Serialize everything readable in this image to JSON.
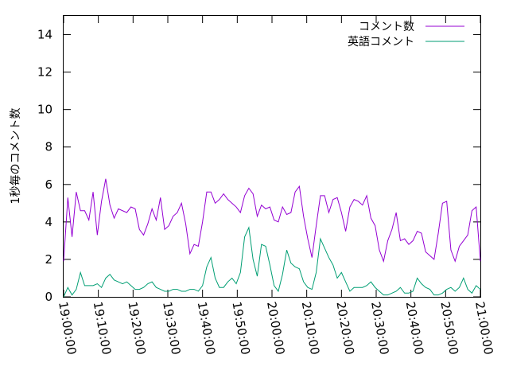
{
  "chart_data": {
    "type": "line",
    "title": "",
    "xlabel": "",
    "ylabel": "1秒毎のコメント数",
    "ylim": [
      0,
      15
    ],
    "yticks": [
      0,
      2,
      4,
      6,
      8,
      10,
      12,
      14
    ],
    "xlim": [
      "19:00:00",
      "21:00:00"
    ],
    "xticks": [
      "19:00:00",
      "19:10:00",
      "19:20:00",
      "19:30:00",
      "19:40:00",
      "19:50:00",
      "20:00:00",
      "20:10:00",
      "20:20:00",
      "20:30:00",
      "20:40:00",
      "20:50:00",
      "21:00:00"
    ],
    "x_step": "1 min",
    "grid": false,
    "legend_position": "top-right",
    "series": [
      {
        "name": "コメント数",
        "color": "#9400d3",
        "values": [
          1.9,
          5.3,
          3.2,
          5.6,
          4.6,
          4.6,
          4.1,
          5.6,
          3.3,
          5.1,
          6.3,
          4.9,
          4.2,
          4.7,
          4.6,
          4.5,
          4.8,
          4.7,
          3.6,
          3.3,
          3.9,
          4.7,
          4.1,
          5.3,
          3.6,
          3.8,
          4.3,
          4.5,
          5.0,
          3.9,
          2.3,
          2.8,
          2.7,
          4.0,
          5.6,
          5.6,
          5.0,
          5.2,
          5.5,
          5.2,
          5.0,
          4.8,
          4.5,
          5.4,
          5.8,
          5.5,
          4.3,
          4.9,
          4.7,
          4.8,
          4.1,
          4.0,
          4.8,
          4.4,
          4.5,
          5.6,
          5.9,
          4.3,
          3.1,
          2.1,
          3.8,
          5.4,
          5.4,
          4.5,
          5.2,
          5.3,
          4.5,
          3.5,
          4.8,
          5.2,
          5.1,
          4.9,
          5.4,
          4.2,
          3.8,
          2.5,
          1.9,
          3.0,
          3.6,
          4.5,
          3.0,
          3.1,
          2.8,
          3.0,
          3.5,
          3.4,
          2.4,
          2.2,
          2.0,
          3.4,
          5.0,
          5.1,
          2.5,
          1.9,
          2.7,
          3.0,
          3.3,
          4.6,
          4.8,
          1.9
        ]
      },
      {
        "name": "英語コメント",
        "color": "#009e73",
        "values": [
          0.0,
          0.5,
          0.1,
          0.4,
          1.3,
          0.6,
          0.6,
          0.6,
          0.7,
          0.5,
          1.0,
          1.2,
          0.9,
          0.8,
          0.7,
          0.8,
          0.6,
          0.4,
          0.4,
          0.5,
          0.7,
          0.8,
          0.5,
          0.4,
          0.3,
          0.3,
          0.4,
          0.4,
          0.3,
          0.3,
          0.4,
          0.4,
          0.3,
          0.6,
          1.6,
          2.1,
          1.0,
          0.5,
          0.5,
          0.8,
          1.0,
          0.7,
          1.3,
          3.2,
          3.7,
          2.0,
          1.1,
          2.8,
          2.7,
          1.7,
          0.6,
          0.3,
          1.2,
          2.5,
          1.8,
          1.6,
          1.5,
          0.8,
          0.5,
          0.4,
          1.3,
          3.1,
          2.6,
          2.1,
          1.7,
          1.0,
          1.3,
          0.8,
          0.3,
          0.5,
          0.5,
          0.5,
          0.6,
          0.8,
          0.5,
          0.3,
          0.1,
          0.1,
          0.2,
          0.3,
          0.5,
          0.2,
          0.2,
          0.3,
          1.0,
          0.7,
          0.5,
          0.4,
          0.1,
          0.1,
          0.2,
          0.4,
          0.5,
          0.3,
          0.5,
          1.0,
          0.4,
          0.2,
          0.6,
          0.4
        ]
      }
    ]
  }
}
